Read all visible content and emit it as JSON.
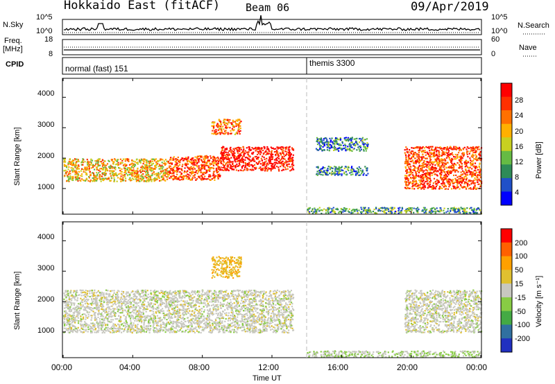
{
  "header": {
    "title": "Hokkaido East (fitACF)",
    "beam": "Beam 06",
    "date": "09/Apr/2019"
  },
  "sky_panel": {
    "left_label": "N.Sky",
    "right_label": "N.Search",
    "ticks_left": [
      "10^5",
      "10^0"
    ],
    "ticks_right": [
      "10^5",
      "10^0"
    ]
  },
  "freq_panel": {
    "left_label_line1": "Freq.",
    "left_label_line2": "[MHz]",
    "right_label": "Nave",
    "ticks_left": [
      "18",
      "8"
    ],
    "ticks_right": [
      "60",
      "0"
    ]
  },
  "cpid_panel": {
    "label": "CPID",
    "segments": [
      {
        "name": "normal (fast) 151",
        "start": "00:00"
      },
      {
        "name": "themis 3300",
        "start": "14:00"
      }
    ]
  },
  "power_panel": {
    "ylabel": "Slant Range [km]",
    "yticks": [
      "4000",
      "3000",
      "2000",
      "1000"
    ],
    "colorbar_label": "Power [dB]",
    "colorbar_ticks": [
      "28",
      "24",
      "20",
      "16",
      "12",
      "8",
      "4"
    ],
    "colors": [
      "#0000ff",
      "#2050c8",
      "#2e8b57",
      "#66bb44",
      "#c8d020",
      "#ffb000",
      "#ff7000",
      "#ff3000",
      "#ff0000"
    ]
  },
  "velocity_panel": {
    "ylabel": "Slant Range [km]",
    "yticks": [
      "4000",
      "3000",
      "2000",
      "1000"
    ],
    "colorbar_label": "Velocity [m s⁻¹]",
    "colorbar_ticks": [
      "200",
      "100",
      "50",
      "15",
      "-15",
      "-50",
      "-100",
      "-200"
    ],
    "colors": [
      "#2030c0",
      "#3070a0",
      "#44aa44",
      "#88cc44",
      "#c8c8c0",
      "#e0c030",
      "#ffa000",
      "#ff6000",
      "#ff0000"
    ]
  },
  "x_axis": {
    "label": "Time UT",
    "ticks": [
      "00:00",
      "04:00",
      "08:00",
      "12:00",
      "16:00",
      "20:00",
      "00:00"
    ]
  },
  "chart_data": {
    "type": "heatmap",
    "title": "Hokkaido East (fitACF)",
    "xlabel": "Time UT",
    "ylabel": "Slant Range [km]",
    "xlim": [
      0,
      24
    ],
    "ylim": [
      180,
      4600
    ],
    "series": [
      {
        "name": "Power [dB]",
        "clim": [
          0,
          30
        ],
        "regions": [
          {
            "t": [
              0,
              6
            ],
            "r": [
              1250,
              2000
            ],
            "v": 18
          },
          {
            "t": [
              6,
              9
            ],
            "r": [
              1300,
              2100
            ],
            "v": 24
          },
          {
            "t": [
              9,
              13.2
            ],
            "r": [
              1600,
              2400
            ],
            "v": 28
          },
          {
            "t": [
              8.5,
              10.2
            ],
            "r": [
              2800,
              3300
            ],
            "v": 22
          },
          {
            "t": [
              14.5,
              17.5
            ],
            "r": [
              2250,
              2700
            ],
            "v": 8
          },
          {
            "t": [
              14.5,
              17.5
            ],
            "r": [
              1450,
              1750
            ],
            "v": 8
          },
          {
            "t": [
              19.6,
              24
            ],
            "r": [
              1000,
              2400
            ],
            "v": 24
          },
          {
            "t": [
              14,
              24
            ],
            "r": [
              200,
              400
            ],
            "v": 10
          }
        ]
      },
      {
        "name": "Velocity [m s⁻¹]",
        "clim": [
          -200,
          200
        ],
        "regions": [
          {
            "t": [
              0,
              13.2
            ],
            "r": [
              1000,
              2400
            ],
            "v": 0
          },
          {
            "t": [
              8.5,
              10.2
            ],
            "r": [
              2800,
              3500
            ],
            "v": 60
          },
          {
            "t": [
              19.6,
              24
            ],
            "r": [
              1000,
              2400
            ],
            "v": 0
          },
          {
            "t": [
              14,
              24
            ],
            "r": [
              200,
              400
            ],
            "v": -20
          }
        ]
      }
    ],
    "ticks_x": [
      "00:00",
      "04:00",
      "08:00",
      "12:00",
      "16:00",
      "20:00",
      "00:00"
    ],
    "ticks_y": [
      1000,
      2000,
      3000,
      4000
    ]
  }
}
